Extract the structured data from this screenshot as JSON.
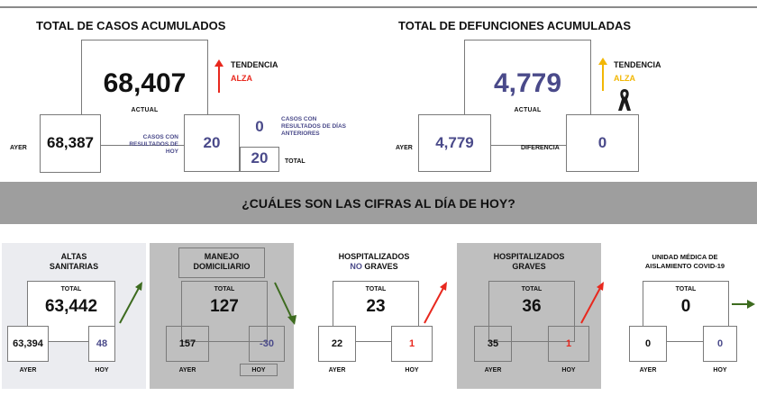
{
  "cases": {
    "title": "TOTAL DE CASOS ACUMULADOS",
    "actual_value": "68,407",
    "actual_label": "ACTUAL",
    "trend_label": "TENDENCIA",
    "trend_value": "ALZA",
    "yesterday_label": "AYER",
    "yesterday_value": "68,387",
    "today_note": "CASOS CON RESULTADOS DE HOY",
    "today_value": "20",
    "prev_note": "CASOS CON RESULTADOS DE DÍAS ANTERIORES",
    "prev_value": "0",
    "total_value": "20",
    "total_label": "TOTAL"
  },
  "deaths": {
    "title": "TOTAL DE DEFUNCIONES ACUMULADAS",
    "actual_value": "4,779",
    "actual_label": "ACTUAL",
    "trend_label": "TENDENCIA",
    "trend_value": "ALZA",
    "yesterday_label": "AYER",
    "yesterday_value": "4,779",
    "diff_label": "DIFERENCIA",
    "diff_value": "0"
  },
  "banner": {
    "text": "¿CUÁLES SON LAS CIFRAS AL DÍA DE HOY?"
  },
  "panels": [
    {
      "title1": "ALTAS",
      "title2": "SANITARIAS",
      "total_label": "TOTAL",
      "total": "63,442",
      "ayer": "63,394",
      "hoy": "48",
      "ayer_label": "AYER",
      "hoy_label": "HOY"
    },
    {
      "title1": "MANEJO",
      "title2": "DOMICILIARIO",
      "total_label": "TOTAL",
      "total": "127",
      "ayer": "157",
      "hoy": "-30",
      "ayer_label": "AYER",
      "hoy_label": "HOY"
    },
    {
      "title1": "HOSPITALIZADOS",
      "title2a": "NO",
      "title2b": " GRAVES",
      "total_label": "TOTAL",
      "total": "23",
      "ayer": "22",
      "hoy": "1",
      "ayer_label": "AYER",
      "hoy_label": "HOY"
    },
    {
      "title1": "HOSPITALIZADOS",
      "title2": "GRAVES",
      "total_label": "TOTAL",
      "total": "36",
      "ayer": "35",
      "hoy": "1",
      "ayer_label": "AYER",
      "hoy_label": "HOY"
    },
    {
      "title1": "UNIDAD MÉDICA DE",
      "title2": "AISLAMIENTO COVID-19",
      "total_label": "TOTAL",
      "total": "0",
      "ayer": "0",
      "hoy": "0",
      "ayer_label": "AYER",
      "hoy_label": "HOY"
    }
  ],
  "colors": {
    "accent_navy": "#4a4a8a",
    "trend_red": "#e8281e",
    "trend_gold": "#f2b705",
    "trend_green": "#3d6b1f",
    "banner_grey": "#9e9e9e"
  }
}
